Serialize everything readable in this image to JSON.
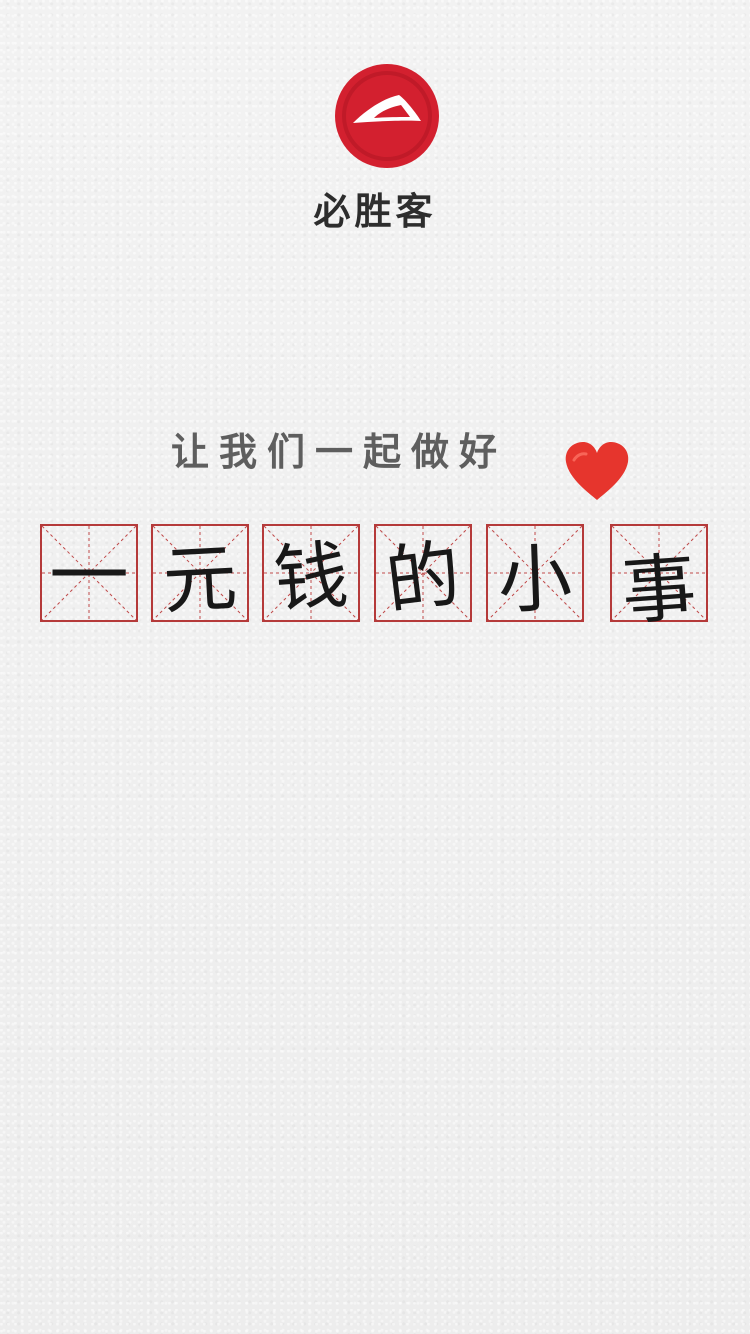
{
  "brand": {
    "name": "必胜客",
    "logo_icon": "pizza-hut-roof-icon",
    "logo_color": "#d3202f"
  },
  "tagline": {
    "line1": "让我们一起做好",
    "heart_icon": "red-heart-icon",
    "heart_color": "#e6352d"
  },
  "headline": {
    "chars": [
      "一",
      "元",
      "钱",
      "的",
      "小",
      "事"
    ],
    "grid_color": "#b53a3a"
  }
}
